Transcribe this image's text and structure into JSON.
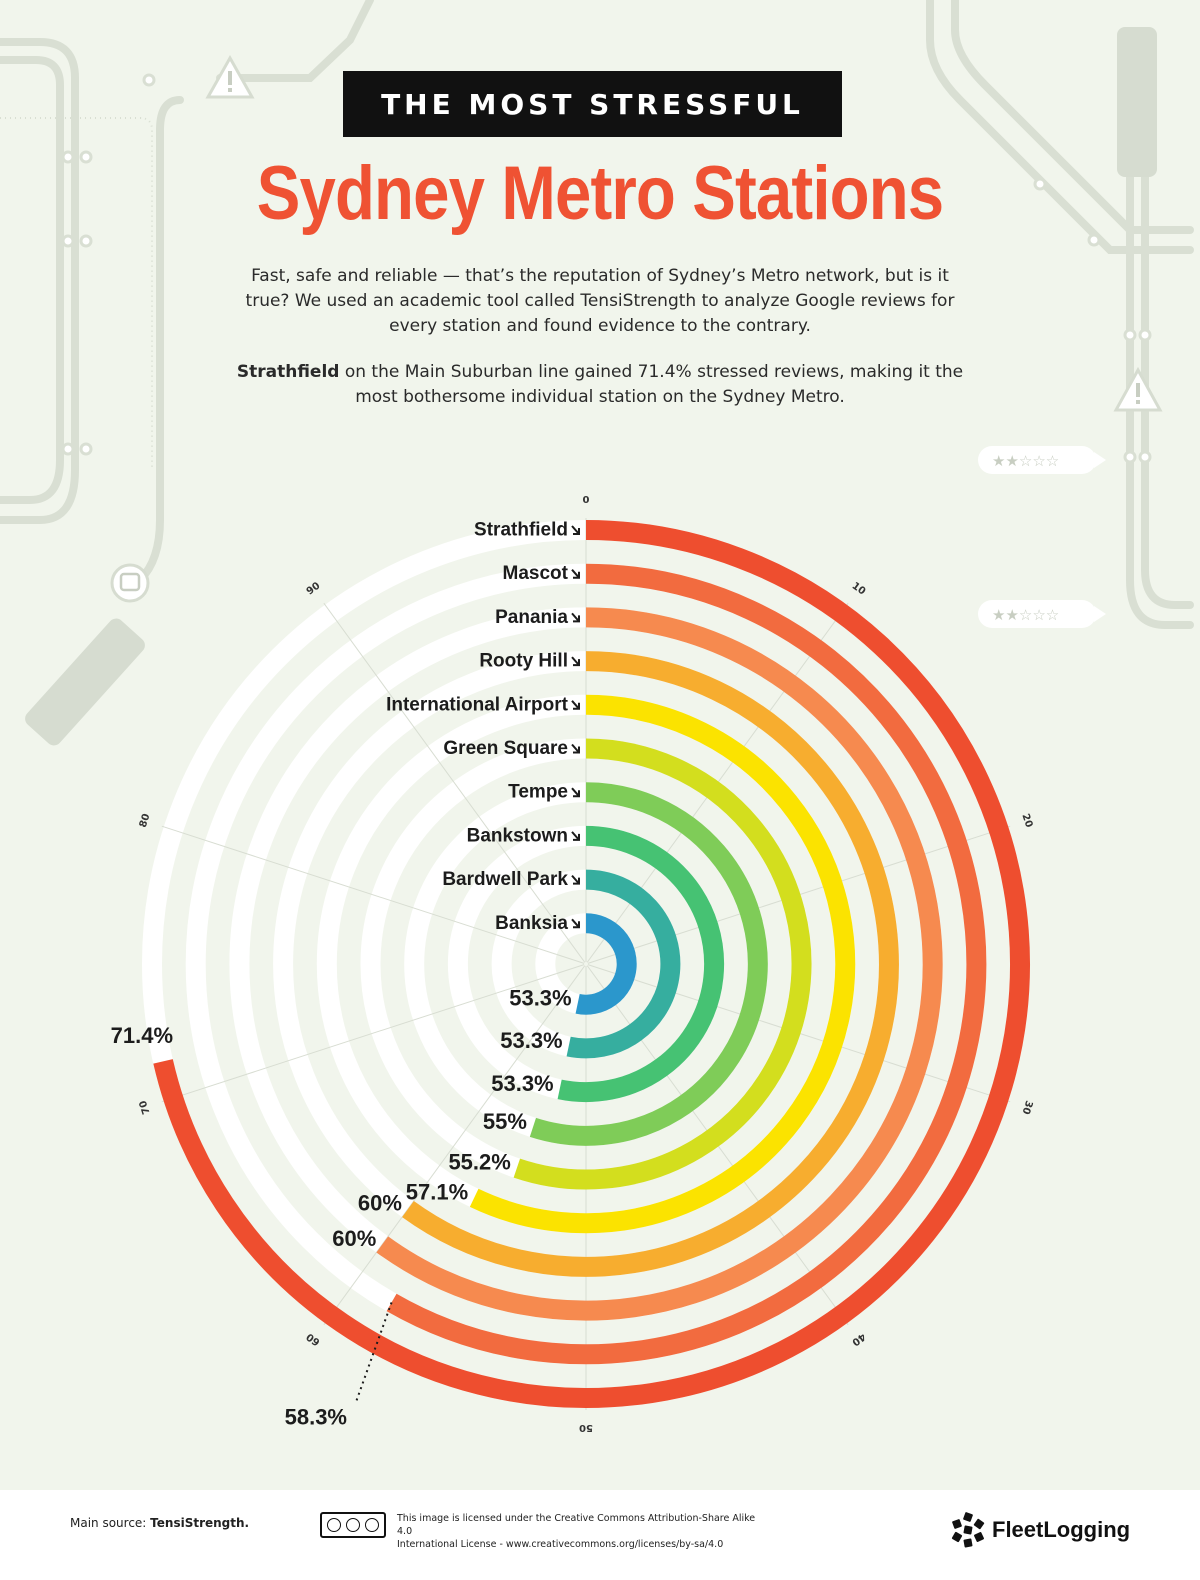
{
  "header": {
    "banner": "THE MOST STRESSFUL",
    "title": "Sydney Metro Stations",
    "intro": "Fast, safe and reliable — that’s the reputation of Sydney’s Metro network, but is it true? We used an academic tool called TensiStrength to analyze Google reviews for every station and found evidence to the contrary.",
    "finding_bold": "Strathfield",
    "finding_rest": " on the Main Suburban line gained 71.4% stressed reviews, making it the most bothersome individual station on the Sydney Metro."
  },
  "chart_data": {
    "type": "radial bar",
    "axis_ticks": [
      0,
      10,
      20,
      30,
      40,
      50,
      60,
      70,
      80,
      90
    ],
    "axis_max": 100,
    "series": [
      {
        "station": "Strathfield",
        "value": 71.4,
        "label": "71.4%",
        "color": "#ee4e2f"
      },
      {
        "station": "Mascot",
        "value": 58.3,
        "label": "58.3%",
        "color": "#f26b3f"
      },
      {
        "station": "Panania",
        "value": 60,
        "label": "60%",
        "color": "#f68a4f"
      },
      {
        "station": "Rooty Hill",
        "value": 60,
        "label": "60%",
        "color": "#f7ad2f"
      },
      {
        "station": "International Airport",
        "value": 57.1,
        "label": "57.1%",
        "color": "#fbe300"
      },
      {
        "station": "Green Square",
        "value": 55.2,
        "label": "55.2%",
        "color": "#d3de1e"
      },
      {
        "station": "Tempe",
        "value": 55,
        "label": "55%",
        "color": "#7fcc58"
      },
      {
        "station": "Bankstown",
        "value": 53.3,
        "label": "53.3%",
        "color": "#46c273"
      },
      {
        "station": "Bardwell Park",
        "value": 53.3,
        "label": "53.3%",
        "color": "#36ae9f"
      },
      {
        "station": "Banksia",
        "value": 53.3,
        "label": "53.3%",
        "color": "#2b97cc"
      }
    ]
  },
  "footer": {
    "source_label": "Main source: ",
    "source_value": "TensiStrength.",
    "license_line1": "This image is licensed under the Creative Commons Attribution-Share Alike 4.0",
    "license_line2": "International License - www.creativecommons.org/licenses/by-sa/4.0",
    "brand": "FleetLogging"
  }
}
